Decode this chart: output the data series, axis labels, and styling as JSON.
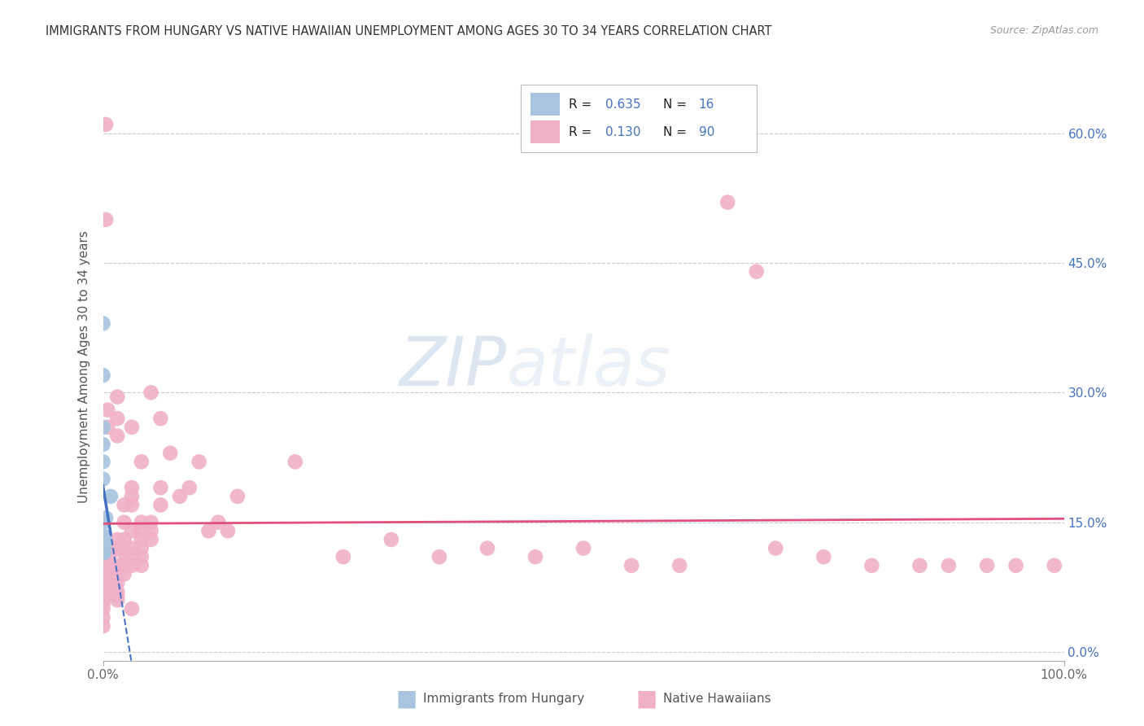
{
  "title": "IMMIGRANTS FROM HUNGARY VS NATIVE HAWAIIAN UNEMPLOYMENT AMONG AGES 30 TO 34 YEARS CORRELATION CHART",
  "source": "Source: ZipAtlas.com",
  "ylabel": "Unemployment Among Ages 30 to 34 years",
  "ylabel_right_ticks": [
    "0.0%",
    "15.0%",
    "30.0%",
    "45.0%",
    "60.0%"
  ],
  "xmax": 1.0,
  "ymin": -0.01,
  "ymax": 0.67,
  "legend_blue_R": "0.635",
  "legend_blue_N": "16",
  "legend_pink_R": "0.130",
  "legend_pink_N": "90",
  "legend_labels": [
    "Immigrants from Hungary",
    "Native Hawaiians"
  ],
  "blue_points": [
    [
      0.0,
      0.38
    ],
    [
      0.0,
      0.32
    ],
    [
      0.0,
      0.26
    ],
    [
      0.0,
      0.24
    ],
    [
      0.0,
      0.22
    ],
    [
      0.0,
      0.2
    ],
    [
      0.0,
      0.15
    ],
    [
      0.0,
      0.135
    ],
    [
      0.0,
      0.12
    ],
    [
      0.0,
      0.115
    ],
    [
      0.001,
      0.115
    ],
    [
      0.001,
      0.12
    ],
    [
      0.001,
      0.125
    ],
    [
      0.002,
      0.13
    ],
    [
      0.003,
      0.155
    ],
    [
      0.008,
      0.18
    ]
  ],
  "pink_points": [
    [
      0.003,
      0.61
    ],
    [
      0.003,
      0.5
    ],
    [
      0.65,
      0.52
    ],
    [
      0.68,
      0.44
    ],
    [
      0.0,
      0.1
    ],
    [
      0.0,
      0.085
    ],
    [
      0.0,
      0.08
    ],
    [
      0.0,
      0.075
    ],
    [
      0.0,
      0.07
    ],
    [
      0.0,
      0.065
    ],
    [
      0.0,
      0.06
    ],
    [
      0.0,
      0.055
    ],
    [
      0.0,
      0.05
    ],
    [
      0.0,
      0.04
    ],
    [
      0.0,
      0.03
    ],
    [
      0.005,
      0.28
    ],
    [
      0.005,
      0.26
    ],
    [
      0.008,
      0.115
    ],
    [
      0.008,
      0.1
    ],
    [
      0.008,
      0.09
    ],
    [
      0.008,
      0.085
    ],
    [
      0.008,
      0.08
    ],
    [
      0.008,
      0.075
    ],
    [
      0.015,
      0.295
    ],
    [
      0.015,
      0.27
    ],
    [
      0.015,
      0.25
    ],
    [
      0.015,
      0.13
    ],
    [
      0.015,
      0.12
    ],
    [
      0.015,
      0.1
    ],
    [
      0.015,
      0.09
    ],
    [
      0.015,
      0.08
    ],
    [
      0.015,
      0.07
    ],
    [
      0.015,
      0.065
    ],
    [
      0.015,
      0.06
    ],
    [
      0.022,
      0.17
    ],
    [
      0.022,
      0.15
    ],
    [
      0.022,
      0.13
    ],
    [
      0.022,
      0.12
    ],
    [
      0.022,
      0.115
    ],
    [
      0.022,
      0.1
    ],
    [
      0.022,
      0.09
    ],
    [
      0.03,
      0.26
    ],
    [
      0.03,
      0.19
    ],
    [
      0.03,
      0.18
    ],
    [
      0.03,
      0.17
    ],
    [
      0.03,
      0.14
    ],
    [
      0.03,
      0.12
    ],
    [
      0.03,
      0.11
    ],
    [
      0.03,
      0.1
    ],
    [
      0.03,
      0.05
    ],
    [
      0.04,
      0.22
    ],
    [
      0.04,
      0.15
    ],
    [
      0.04,
      0.14
    ],
    [
      0.04,
      0.13
    ],
    [
      0.04,
      0.12
    ],
    [
      0.04,
      0.11
    ],
    [
      0.04,
      0.1
    ],
    [
      0.05,
      0.3
    ],
    [
      0.05,
      0.15
    ],
    [
      0.05,
      0.14
    ],
    [
      0.05,
      0.13
    ],
    [
      0.06,
      0.27
    ],
    [
      0.06,
      0.19
    ],
    [
      0.06,
      0.17
    ],
    [
      0.07,
      0.23
    ],
    [
      0.08,
      0.18
    ],
    [
      0.09,
      0.19
    ],
    [
      0.1,
      0.22
    ],
    [
      0.11,
      0.14
    ],
    [
      0.12,
      0.15
    ],
    [
      0.13,
      0.14
    ],
    [
      0.14,
      0.18
    ],
    [
      0.2,
      0.22
    ],
    [
      0.25,
      0.11
    ],
    [
      0.3,
      0.13
    ],
    [
      0.35,
      0.11
    ],
    [
      0.4,
      0.12
    ],
    [
      0.45,
      0.11
    ],
    [
      0.5,
      0.12
    ],
    [
      0.55,
      0.1
    ],
    [
      0.6,
      0.1
    ],
    [
      0.7,
      0.12
    ],
    [
      0.75,
      0.11
    ],
    [
      0.8,
      0.1
    ],
    [
      0.85,
      0.1
    ],
    [
      0.88,
      0.1
    ],
    [
      0.92,
      0.1
    ],
    [
      0.95,
      0.1
    ],
    [
      0.99,
      0.1
    ]
  ],
  "blue_scatter_color": "#a8c4e0",
  "blue_line_color": "#4472c4",
  "pink_scatter_color": "#f0b0c8",
  "pink_line_color": "#e0507a",
  "background_color": "#ffffff",
  "grid_color": "#cccccc"
}
